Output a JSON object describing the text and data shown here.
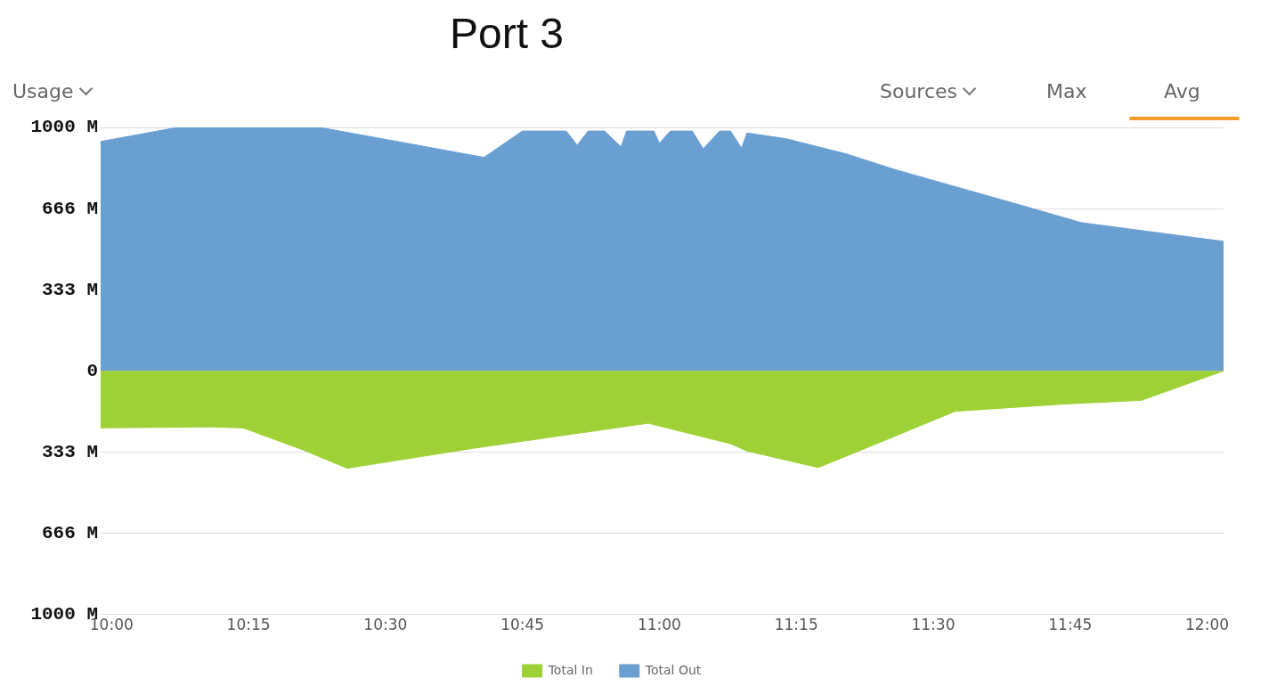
{
  "chart_data": {
    "type": "area",
    "title": "Port 3",
    "annotations": [
      "Usage",
      "Sources",
      "Max",
      "Avg"
    ],
    "xlim": [
      9.98,
      12.03
    ],
    "xticks": [
      {
        "value": 10,
        "label": "10:00"
      },
      {
        "value": 10.25,
        "label": "10:15"
      },
      {
        "value": 10.5,
        "label": "10:30"
      },
      {
        "value": 10.75,
        "label": "10:45"
      },
      {
        "value": 11,
        "label": "11:00"
      },
      {
        "value": 11.25,
        "label": "11:15"
      },
      {
        "value": 11.5,
        "label": "11:30"
      },
      {
        "value": 11.75,
        "label": "11:45"
      },
      {
        "value": 12,
        "label": "12:00"
      }
    ],
    "ylim": [
      -1000,
      1000
    ],
    "yticks": [
      {
        "value": -1000,
        "label": "1000 M"
      },
      {
        "value": -666,
        "label": "666 M"
      },
      {
        "value": -333,
        "label": "333 M"
      },
      0,
      {
        "value": 333,
        "label": "333 M"
      },
      {
        "value": 666,
        "label": "666 M"
      },
      {
        "value": 1000,
        "label": "1000 M"
      }
    ],
    "grid": "y",
    "legend": "bottom",
    "series": [
      {
        "name": "Total In",
        "color": "#9ed135",
        "x": [
          9.98,
          10.18,
          10.24,
          10.35,
          10.43,
          10.66,
          10.98,
          11.13,
          11.16,
          11.29,
          11.36,
          11.54,
          11.74,
          11.88,
          12.03
        ],
        "values": [
          -234,
          -230,
          -234,
          -325,
          -400,
          -318,
          -215,
          -299,
          -329,
          -397,
          -333,
          -166,
          -136,
          -121,
          0
        ]
      },
      {
        "name": "Total Out",
        "color": "#6a9fd2",
        "x": [
          9.98,
          10.12,
          10.38,
          10.68,
          10.75,
          10.83,
          10.85,
          10.87,
          10.9,
          10.93,
          10.94,
          10.99,
          11,
          11.02,
          11.06,
          11.08,
          11.11,
          11.13,
          11.15,
          11.16,
          11.23,
          11.34,
          11.43,
          11.67,
          11.77,
          12.03
        ],
        "values": [
          942,
          1000,
          1000,
          877,
          985,
          985,
          927,
          985,
          985,
          920,
          985,
          985,
          935,
          985,
          985,
          912,
          985,
          985,
          915,
          977,
          954,
          892,
          827,
          674,
          609,
          532
        ]
      }
    ]
  }
}
